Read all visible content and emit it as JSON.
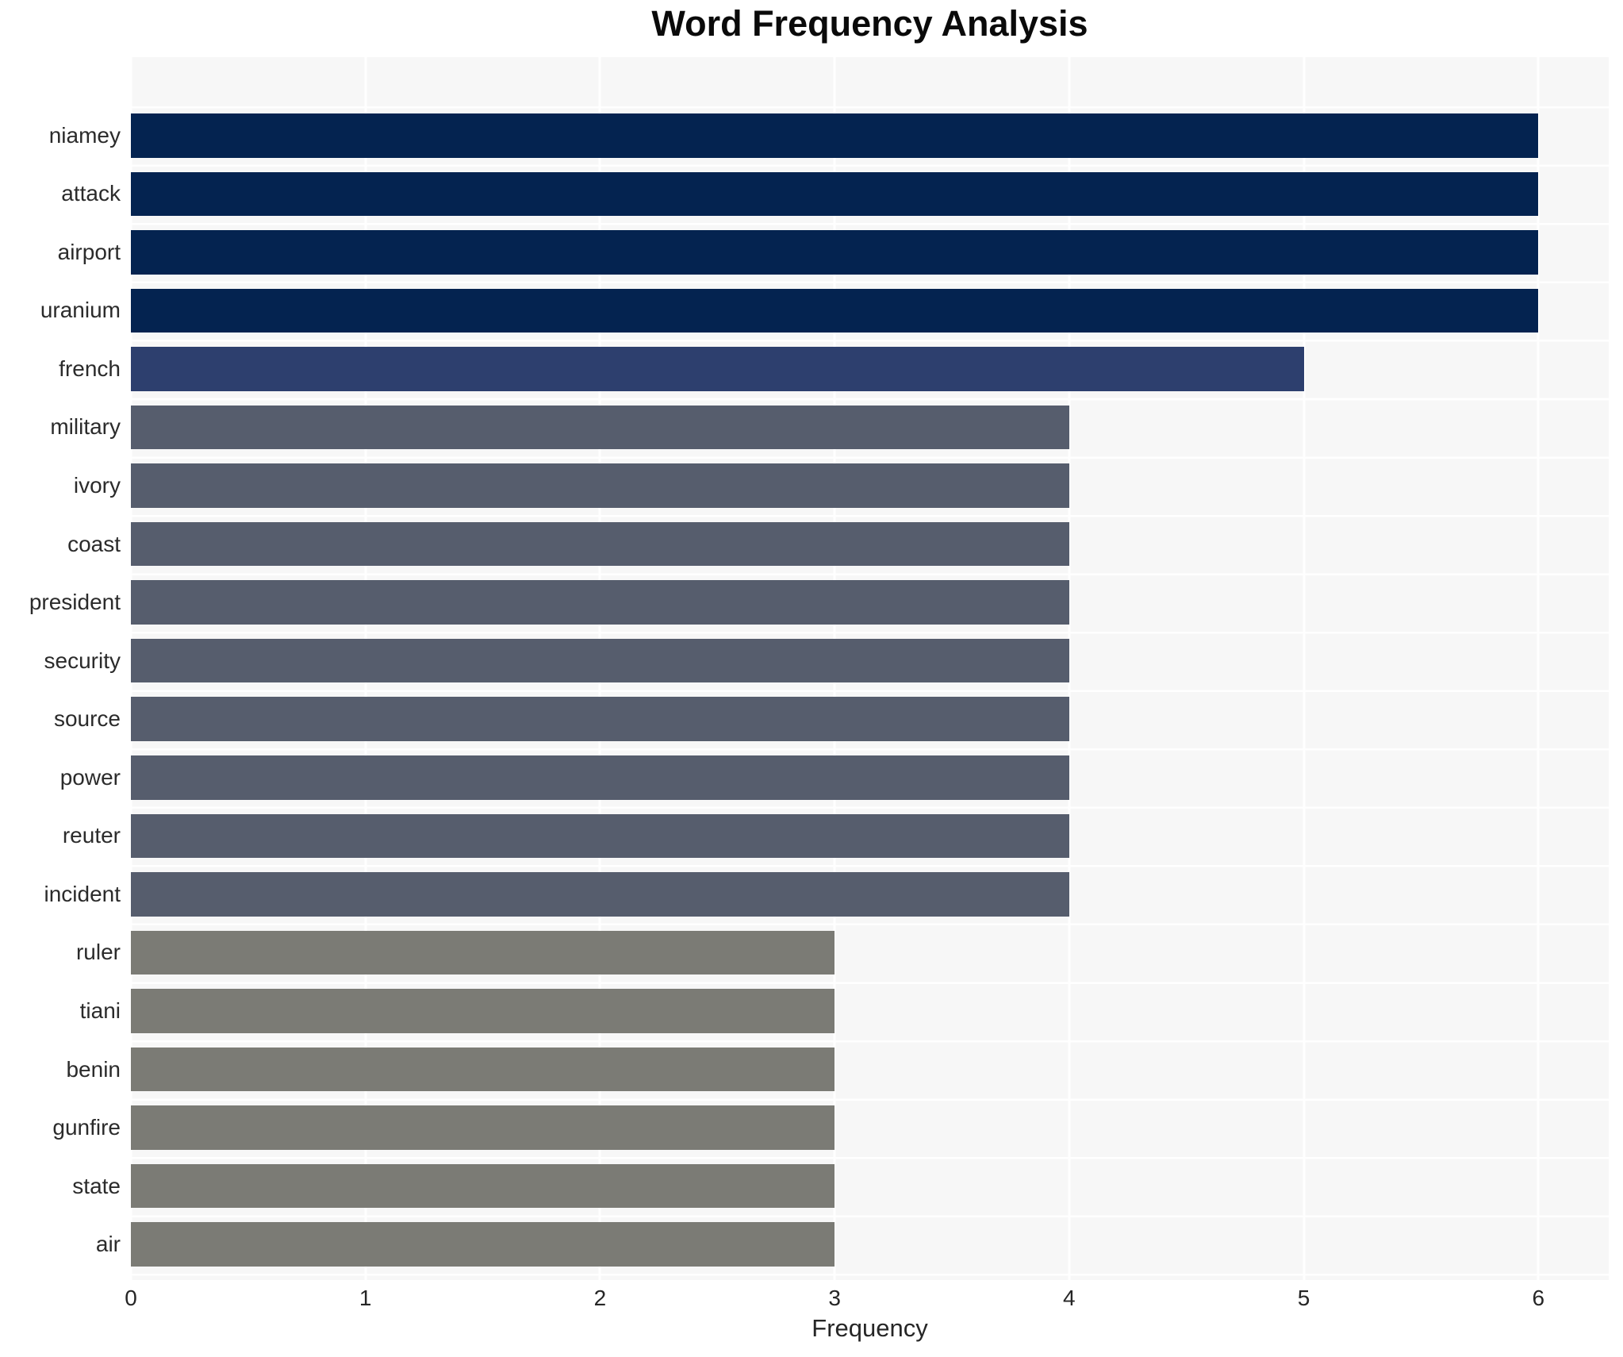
{
  "chart_data": {
    "type": "bar",
    "orientation": "horizontal",
    "title": "Word Frequency Analysis",
    "xlabel": "Frequency",
    "ylabel": "",
    "categories": [
      "niamey",
      "attack",
      "airport",
      "uranium",
      "french",
      "military",
      "ivory",
      "coast",
      "president",
      "security",
      "source",
      "power",
      "reuter",
      "incident",
      "ruler",
      "tiani",
      "benin",
      "gunfire",
      "state",
      "air"
    ],
    "values": [
      6,
      6,
      6,
      6,
      5,
      4,
      4,
      4,
      4,
      4,
      4,
      4,
      4,
      4,
      3,
      3,
      3,
      3,
      3,
      3
    ],
    "bar_colors": [
      "#042350",
      "#042350",
      "#042350",
      "#042350",
      "#2d3f6e",
      "#565d6d",
      "#565d6d",
      "#565d6d",
      "#565d6d",
      "#565d6d",
      "#565d6d",
      "#565d6d",
      "#565d6d",
      "#565d6d",
      "#7b7b75",
      "#7b7b75",
      "#7b7b75",
      "#7b7b75",
      "#7b7b75",
      "#7b7b75"
    ],
    "value_color_map": {
      "6": "#042350",
      "5": "#2d3f6e",
      "4": "#565d6d",
      "3": "#7b7b75"
    },
    "xticks": [
      0,
      1,
      2,
      3,
      4,
      5,
      6
    ],
    "xlim": [
      0,
      6.3
    ],
    "grid": true,
    "legend": false,
    "panel_background": "#f7f7f7",
    "gridline_color": "#ffffff"
  }
}
